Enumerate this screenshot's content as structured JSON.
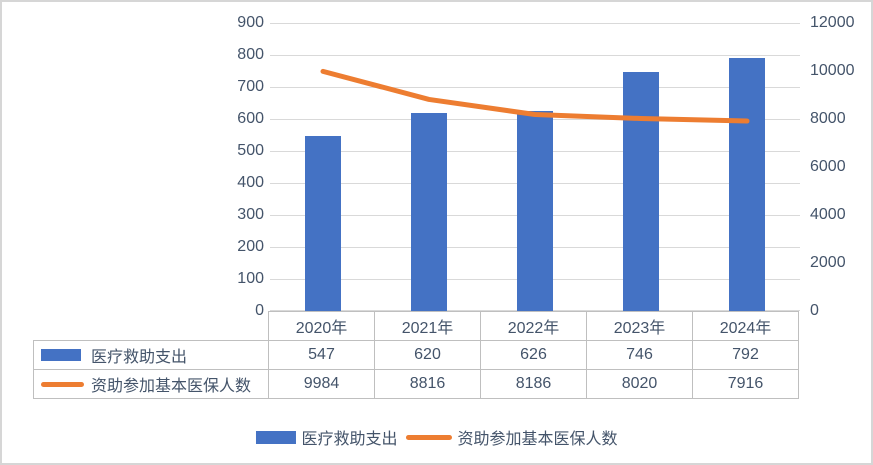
{
  "chart_data": {
    "type": "combo-bar-line",
    "title": "",
    "categories": [
      "2020年",
      "2021年",
      "2022年",
      "2023年",
      "2024年"
    ],
    "series": [
      {
        "name": "医疗救助支出",
        "chart": "bar",
        "axis": "left",
        "color": "#4472C4",
        "values": [
          547,
          620,
          626,
          746,
          792
        ]
      },
      {
        "name": "资助参加基本医保人数",
        "chart": "line",
        "axis": "right",
        "color": "#ED7D31",
        "values": [
          9984,
          8816,
          8186,
          8020,
          7916
        ]
      }
    ],
    "left_axis": {
      "min": 0,
      "max": 900,
      "step": 100,
      "ticks": [
        900,
        800,
        700,
        600,
        500,
        400,
        300,
        200,
        100,
        0
      ]
    },
    "right_axis": {
      "min": 0,
      "max": 12000,
      "step": 2000,
      "ticks": [
        12000,
        10000,
        8000,
        6000,
        4000,
        2000,
        0
      ]
    },
    "grid": "horizontal",
    "legend_position": "bottom",
    "data_table_shown": true
  },
  "legend": {
    "items": [
      {
        "label": "医疗救助支出",
        "swatch": "bar"
      },
      {
        "label": "资助参加基本医保人数",
        "swatch": "line"
      }
    ]
  },
  "colors": {
    "bar": "#4472C4",
    "line": "#ED7D31",
    "grid": "#D9D9D9",
    "table_border": "#BFBFBF",
    "text": "#44546A",
    "background": "#FFFFFF",
    "frame_border": "#D6D6D6"
  }
}
